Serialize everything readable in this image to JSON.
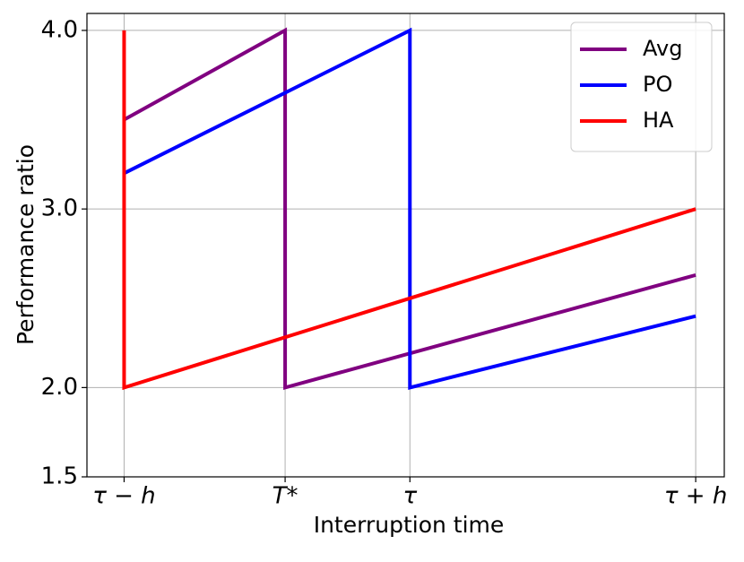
{
  "chart_data": {
    "type": "line",
    "xlabel": "Interruption time",
    "ylabel": "Performance ratio",
    "xlim": [
      -0.13,
      2.1
    ],
    "ylim": [
      1.5,
      4.095
    ],
    "xticks": [
      {
        "value": 0,
        "label": "τ − h"
      },
      {
        "value": 0.5634,
        "label": "T*"
      },
      {
        "value": 1,
        "label": "τ"
      },
      {
        "value": 2,
        "label": "τ + h"
      }
    ],
    "yticks": [
      1.5,
      {
        "value": 2,
        "label": "2.0"
      },
      {
        "value": 3,
        "label": "3.0"
      },
      {
        "value": 4,
        "label": "4.0"
      }
    ],
    "grid": true,
    "legend": "upper right",
    "series": [
      {
        "name": "Avg",
        "color": "#800080",
        "x": [
          0,
          0.5634,
          0.5634,
          2
        ],
        "values": [
          3.5,
          4.0,
          2.0,
          2.63
        ]
      },
      {
        "name": "PO",
        "color": "#0000ff",
        "x": [
          0,
          1,
          1,
          2
        ],
        "values": [
          3.2,
          4.0,
          2.0,
          2.4
        ]
      },
      {
        "name": "HA",
        "color": "#ff0000",
        "x": [
          0,
          0,
          2
        ],
        "values": [
          4.0,
          2.0,
          3.0
        ]
      }
    ]
  }
}
